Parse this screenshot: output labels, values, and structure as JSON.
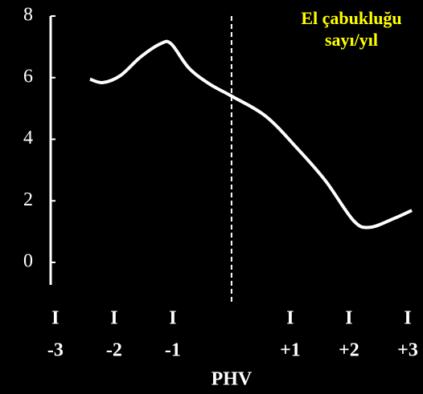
{
  "chart_data": {
    "type": "line",
    "annotation": [
      "El çabukluğu",
      "sayı/yıl"
    ],
    "xlabel": "PHV",
    "tick_glyph": "I",
    "x": [
      -2.41,
      -2.19,
      -1.89,
      -1.55,
      -1.21,
      -1.03,
      -0.73,
      -0.38,
      0,
      0.58,
      1.12,
      1.6,
      2.08,
      2.36,
      2.77,
      3.07
    ],
    "values": [
      5.95,
      5.84,
      6.07,
      6.67,
      7.1,
      7.1,
      6.32,
      5.8,
      5.4,
      4.75,
      3.7,
      2.65,
      1.35,
      1.14,
      1.43,
      1.69
    ],
    "color": "#ffffff",
    "annotation_color": "#ffff00",
    "reference_x": 0,
    "xlim": [
      -3.08,
      3.26
    ],
    "xticks": [
      {
        "value": -3,
        "label": "-3"
      },
      {
        "value": -2,
        "label": "-2"
      },
      {
        "value": -1,
        "label": "-1"
      },
      {
        "value": 1,
        "label": "+1"
      },
      {
        "value": 2,
        "label": "+2"
      },
      {
        "value": 3,
        "label": "+3"
      }
    ],
    "ylim": [
      0,
      8
    ],
    "yticks": [
      0,
      2,
      4,
      6,
      8
    ]
  }
}
